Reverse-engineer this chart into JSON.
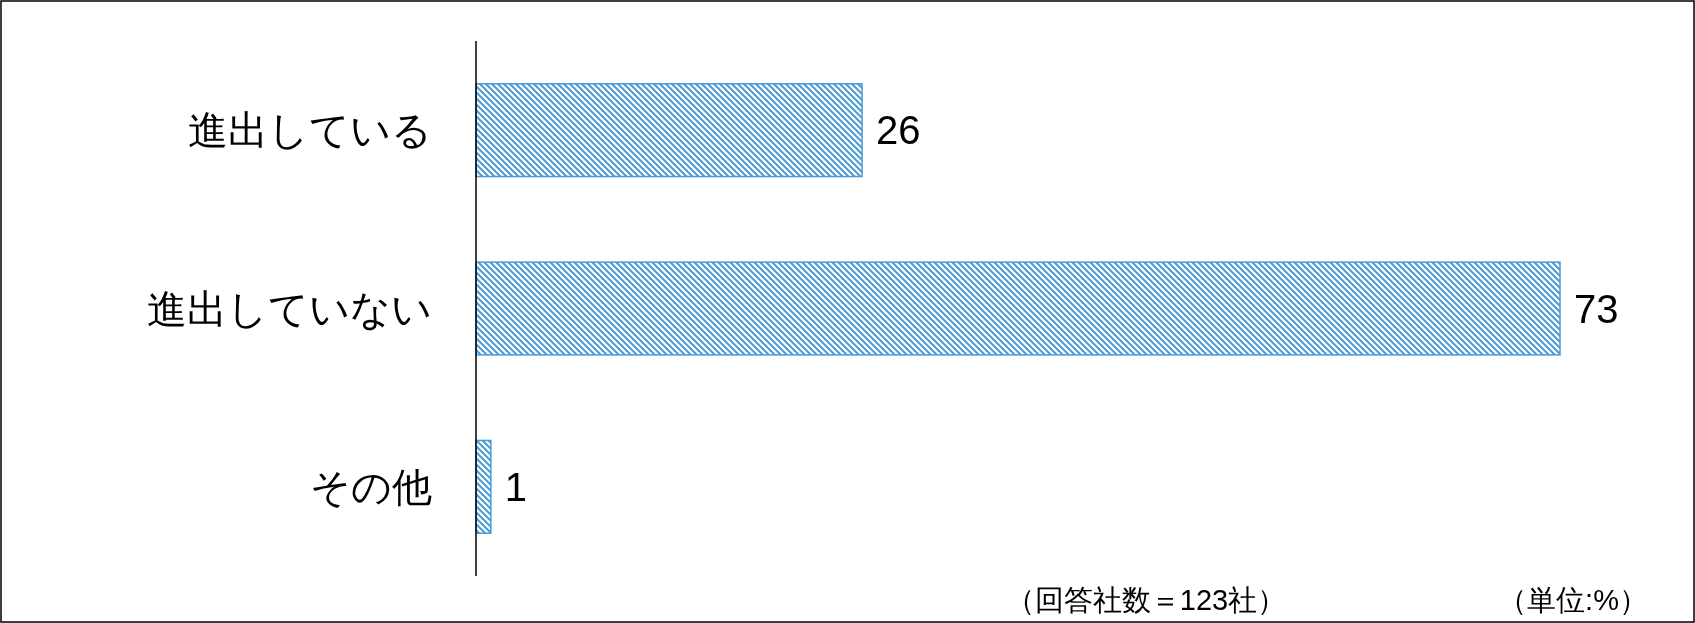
{
  "chart_data": {
    "type": "bar",
    "orientation": "horizontal",
    "categories": [
      "進出している",
      "進出していない",
      "その他"
    ],
    "values": [
      26,
      73,
      1
    ],
    "color": "#4a9ad8",
    "data_labels": true,
    "annotations": [
      "（回答社数＝123社）",
      "（単位:%）"
    ]
  }
}
